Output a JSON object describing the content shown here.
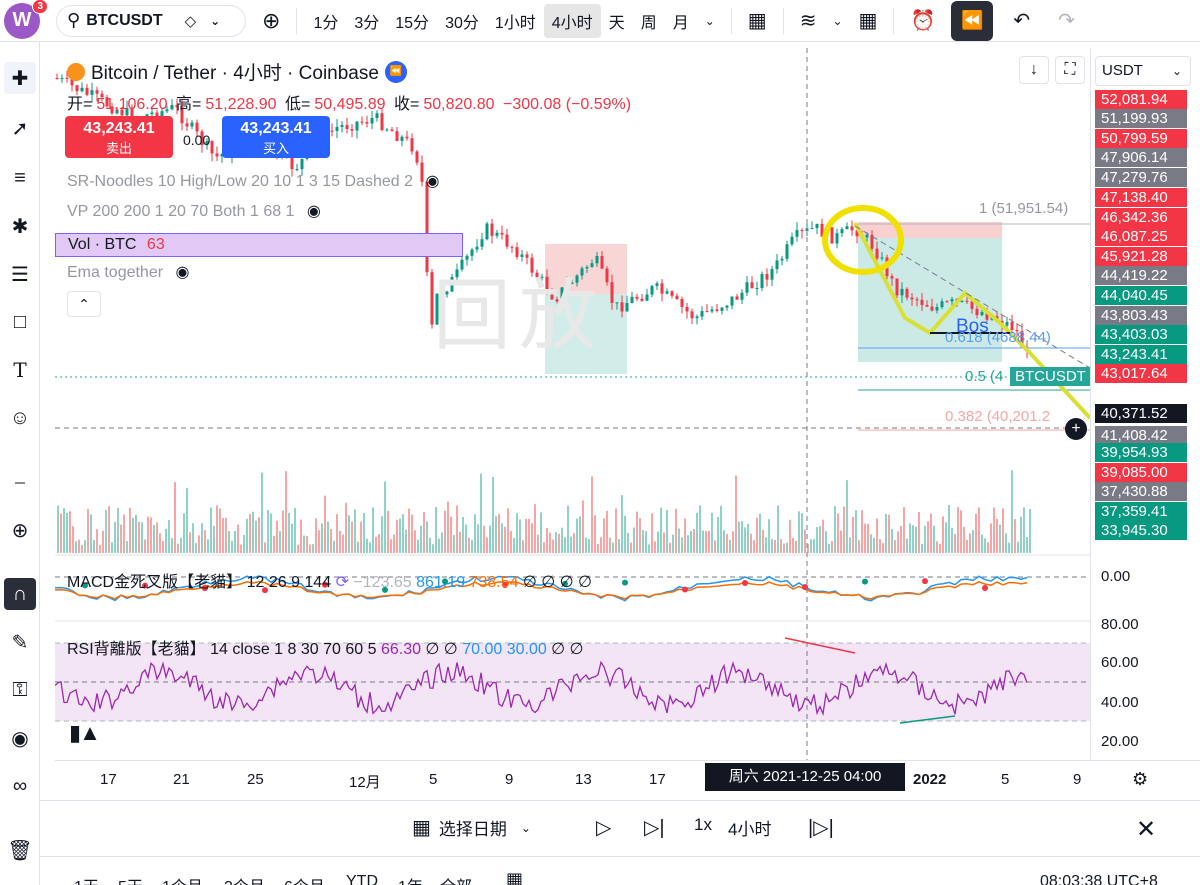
{
  "toolbar": {
    "logo_letter": "W",
    "notification_count": "3",
    "symbol": "BTCUSDT",
    "intervals": [
      "1分",
      "3分",
      "15分",
      "30分",
      "1小时",
      "4小时",
      "天",
      "周",
      "月"
    ],
    "active_interval": "4小时"
  },
  "chart": {
    "title": "Bitcoin / Tether · 4小时 · Coinbase",
    "ohlc": {
      "open_label": "开=",
      "open": "51,106.20",
      "high_label": "高=",
      "high": "51,228.90",
      "low_label": "低=",
      "low": "50,495.89",
      "close_label": "收=",
      "close": "50,820.80",
      "change": "−300.08 (−0.59%)"
    },
    "sell_price": "43,243.41",
    "sell_label": "卖出",
    "spread": "0.00",
    "buy_price": "43,243.41",
    "buy_label": "买入",
    "indicators": {
      "sr": "SR-Noodles 10 High/Low 20 10 1 3 15 Dashed 2",
      "vp": "VP 200 200 1 20 70 Both 1 68 1",
      "vol_name": "Vol · BTC",
      "vol_value": "63",
      "ema": "Ema together"
    },
    "watermark": "回放",
    "fib_labels": {
      "f1": "1 (51,951.54)",
      "f618": "0.618 (4",
      "f618b": "688.44)",
      "f5": "0.5 (4",
      "f382": "0.382 (40,201.2"
    },
    "bos_label": "Bos",
    "symbol_tag": "BTCUSDT"
  },
  "macd": {
    "name": "MACD金死叉版【老貓】",
    "params": "12 26 9 144",
    "v1": "−123.65",
    "v2": "861.19",
    "v3": "738.54",
    "extra": "∅ ∅ ∅ ∅",
    "axis": "0.00"
  },
  "rsi": {
    "name": "RSI背離版【老貓】",
    "params": "14 close 1 8 30 70 60 5",
    "v1": "66.30",
    "v2": "∅ ∅",
    "v3": "70.00",
    "v4": "30.00",
    "v5": "∅ ∅",
    "axis": [
      "80.00",
      "60.00",
      "40.00",
      "20.00"
    ]
  },
  "price_scale": {
    "currency": "USDT",
    "labels": [
      {
        "text": "52,081.94",
        "color": "#f23645"
      },
      {
        "text": "51,199.93",
        "color": "#787b86"
      },
      {
        "text": "50,799.59",
        "color": "#f23645"
      },
      {
        "text": "47,906.14",
        "color": "#787b86"
      },
      {
        "text": "47,279.76",
        "color": "#787b86"
      },
      {
        "text": "47,138.40",
        "color": "#f23645"
      },
      {
        "text": "46,342.36",
        "color": "#f23645"
      },
      {
        "text": "46,087.25",
        "color": "#f23645"
      },
      {
        "text": "45,921.28",
        "color": "#f23645"
      },
      {
        "text": "44,419.22",
        "color": "#787b86"
      },
      {
        "text": "44,040.45",
        "color": "#089981"
      },
      {
        "text": "43,803.43",
        "color": "#787b86"
      },
      {
        "text": "43,403.03",
        "color": "#089981"
      },
      {
        "text": "43,243.41",
        "color": "#089981"
      },
      {
        "text": "43,017.64",
        "color": "#f23645"
      },
      {
        "text": "40,371.52",
        "color": "#131722"
      },
      {
        "text": "41,408.42",
        "color": "#787b86"
      },
      {
        "text": "39,954.93",
        "color": "#089981"
      },
      {
        "text": "39,085.00",
        "color": "#f23645"
      },
      {
        "text": "37,430.88",
        "color": "#787b86"
      },
      {
        "text": "37,359.41",
        "color": "#089981"
      },
      {
        "text": "33,945.30",
        "color": "#089981"
      }
    ]
  },
  "time_axis": {
    "labels": [
      "17",
      "21",
      "25",
      "12月",
      "5",
      "9",
      "13",
      "17",
      "2022",
      "5",
      "9"
    ],
    "crosshair": "周六 2021-12-25   04:00"
  },
  "replay": {
    "select_date": "选择日期",
    "speed": "1x",
    "interval": "4小时"
  },
  "bottom": {
    "ranges": [
      "1天",
      "5天",
      "1个月",
      "3个月",
      "6个月",
      "YTD",
      "1年",
      "全部"
    ],
    "clock": "08:03:38 UTC+8"
  },
  "colors": {
    "up": "#089981",
    "down": "#f23645",
    "accent": "#2962ff",
    "highlight": "#f0e000"
  }
}
